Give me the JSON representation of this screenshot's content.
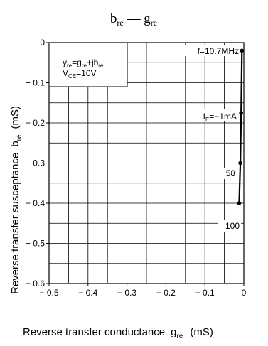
{
  "chart_data": {
    "type": "line",
    "title": {
      "main": "b",
      "main_sub": "re",
      "sep": " — ",
      "second": "g",
      "second_sub": "re"
    },
    "xlabel": {
      "text": "Reverse transfer conductance",
      "sym": "g",
      "sym_sub": "re",
      "unit": "(mS)"
    },
    "ylabel": {
      "text": "Reverse transfer susceptance",
      "sym": "b",
      "sym_sub": "re",
      "unit": "(mS)"
    },
    "xlim": [
      -0.5,
      0
    ],
    "ylim": [
      -0.6,
      0
    ],
    "x_ticks": [
      -0.5,
      -0.4,
      -0.3,
      -0.2,
      -0.1,
      0
    ],
    "x_tick_labels": [
      "− 0.5",
      "− 0.4",
      "− 0.3",
      "− 0.2",
      "− 0.1",
      "0"
    ],
    "y_ticks": [
      0,
      -0.1,
      -0.2,
      -0.3,
      -0.4,
      -0.5,
      -0.6
    ],
    "y_tick_labels": [
      "0",
      "− 0.1",
      "− 0.2",
      "− 0.3",
      "− 0.4",
      "− 0.5",
      "− 0.6"
    ],
    "grid": true,
    "legend_box": {
      "line1": {
        "a": "y",
        "a_sub": "re",
        "b": "=g",
        "b_sub": "re",
        "c": "+jb",
        "c_sub": "re"
      },
      "line2": {
        "a": "V",
        "a_sub": "CE",
        "b": "=10V"
      }
    },
    "series": [
      {
        "x": [
          -0.005,
          -0.007,
          -0.009,
          -0.012
        ],
        "y": [
          -0.02,
          -0.175,
          -0.3,
          -0.4
        ]
      }
    ],
    "annotations": {
      "freq": "f=10.7MHz",
      "ie": {
        "a": "I",
        "a_sub": "E",
        "b": "=−1mA"
      },
      "p58": "58",
      "p100": "100"
    }
  }
}
